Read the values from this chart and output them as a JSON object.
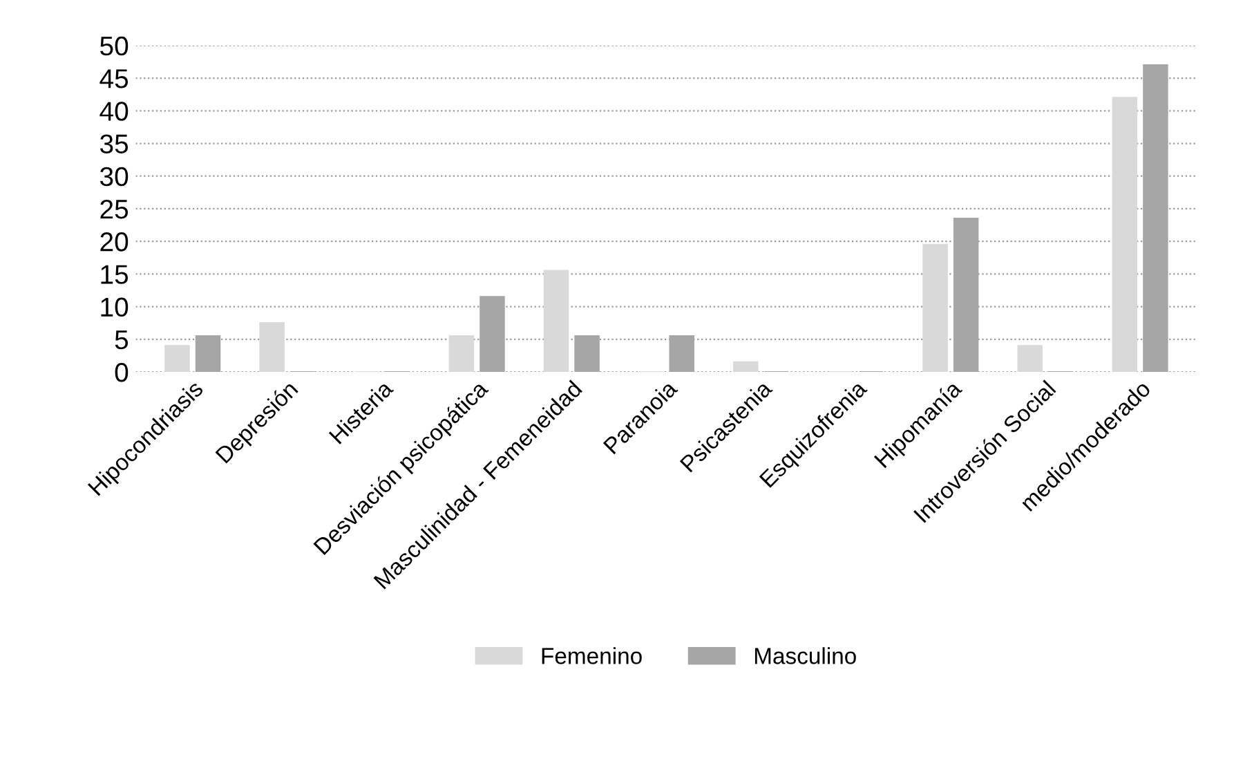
{
  "chart_data": {
    "type": "bar",
    "categories": [
      "Hipocondriasis",
      "Depresión",
      "Histeria",
      "Desviación psicopática",
      "Masculinidad - Femeneidad",
      "Paranoia",
      "Psicastenia",
      "Esquizofrenia",
      "Hipomanía",
      "Introversión Social",
      "medio/moderado"
    ],
    "series": [
      {
        "name": "Femenino",
        "color": "#d9d9d9",
        "values": [
          4,
          7.5,
          0,
          5.5,
          15.5,
          0,
          1.5,
          0,
          19.5,
          4,
          42
        ]
      },
      {
        "name": "Masculino",
        "color": "#a6a6a6",
        "values": [
          5.5,
          0,
          0,
          11.5,
          5.5,
          5.5,
          0,
          0,
          23.5,
          0,
          47
        ]
      }
    ],
    "ylim": [
      0,
      50
    ],
    "yticks": [
      0,
      5,
      10,
      15,
      20,
      25,
      30,
      35,
      40,
      45,
      50
    ],
    "grid": "y",
    "legend": "bottom"
  }
}
